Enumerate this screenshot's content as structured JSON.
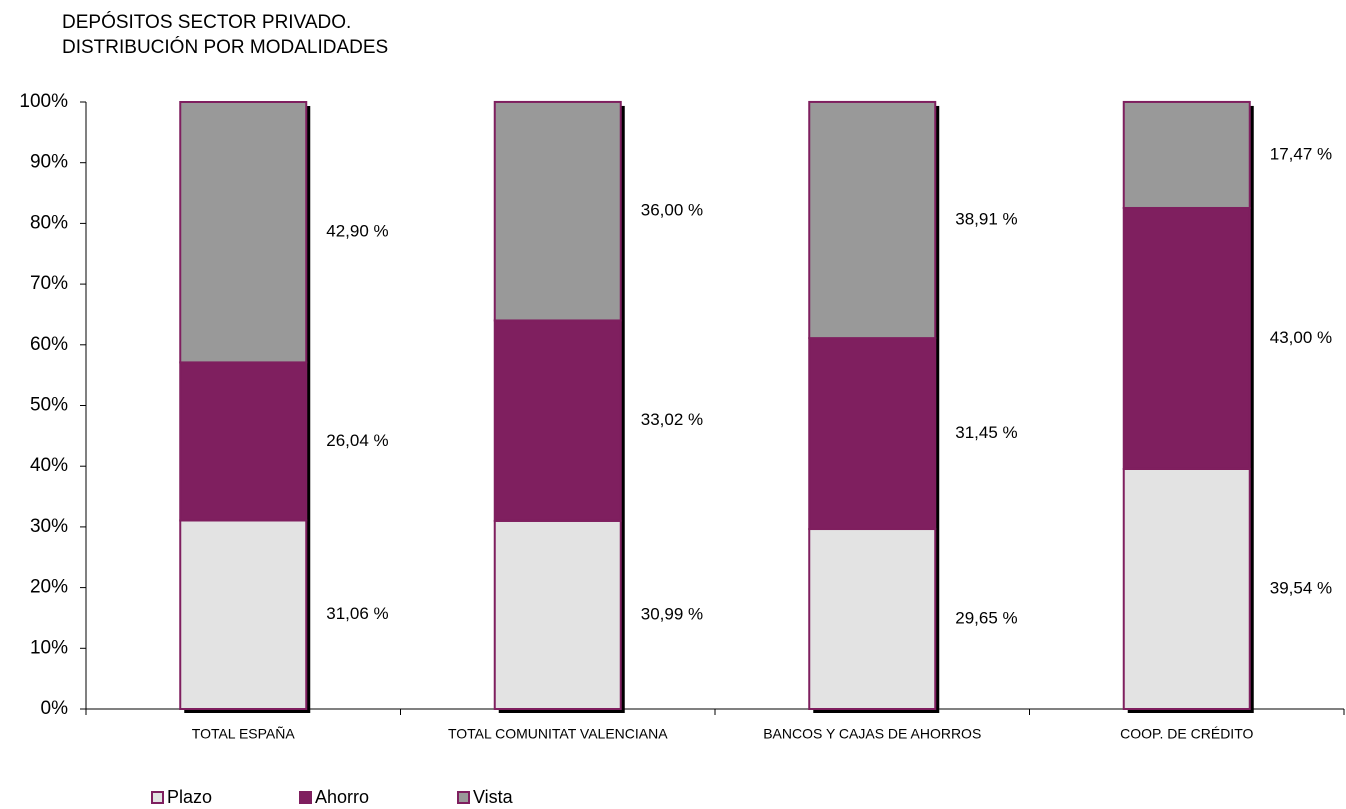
{
  "chart_data": {
    "type": "stacked_bar",
    "title": [
      "DEPÓSITOS SECTOR PRIVADO.",
      "DISTRIBUCIÓN POR MODALIDADES"
    ],
    "categories": [
      "TOTAL ESPAÑA",
      "TOTAL COMUNITAT VALENCIANA",
      "BANCOS Y CAJAS DE AHORROS",
      "COOP. DE CRÉDITO"
    ],
    "series": [
      {
        "name": "Plazo",
        "color": "#e3e3e3",
        "values": [
          31.06,
          30.99,
          29.65,
          39.54
        ],
        "value_labels": [
          "31,06 %",
          "30,99 %",
          "29,65 %",
          "39,54 %"
        ]
      },
      {
        "name": "Ahorro",
        "color": "#7f1f5f",
        "values": [
          26.04,
          33.02,
          31.45,
          43.0
        ],
        "value_labels": [
          "26,04 %",
          "33,02 %",
          "31,45 %",
          "43,00 %"
        ]
      },
      {
        "name": "Vista",
        "color": "#999999",
        "values": [
          42.9,
          36.0,
          38.91,
          17.47
        ],
        "value_labels": [
          "42,90 %",
          "36,00 %",
          "38,91 %",
          "17,47 %"
        ]
      }
    ],
    "ylim": [
      0,
      100
    ],
    "yticks": [
      {
        "value": 0,
        "label": "0%"
      },
      {
        "value": 10,
        "label": "10%"
      },
      {
        "value": 20,
        "label": "20%"
      },
      {
        "value": 30,
        "label": "30%"
      },
      {
        "value": 40,
        "label": "40%"
      },
      {
        "value": 50,
        "label": "50%"
      },
      {
        "value": 60,
        "label": "60%"
      },
      {
        "value": 70,
        "label": "70%"
      },
      {
        "value": 80,
        "label": "80%"
      },
      {
        "value": 90,
        "label": "90%"
      },
      {
        "value": 100,
        "label": "100%"
      }
    ],
    "grid": false,
    "legend": "bottom"
  }
}
